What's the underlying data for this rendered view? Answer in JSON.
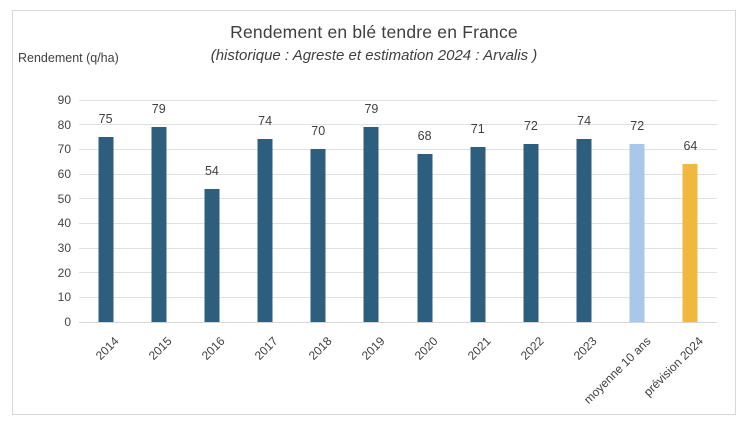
{
  "chart_data": {
    "type": "bar",
    "title": "Rendement en blé tendre en France",
    "subtitle": "(historique : Agreste et estimation 2024 : Arvalis )",
    "ylabel": "Rendement (q/ha)",
    "xlabel": "",
    "categories": [
      "2014",
      "2015",
      "2016",
      "2017",
      "2018",
      "2019",
      "2020",
      "2021",
      "2022",
      "2023",
      "moyenne 10 ans",
      "prévision 2024"
    ],
    "values": [
      75,
      79,
      54,
      74,
      70,
      79,
      68,
      71,
      72,
      74,
      72,
      64
    ],
    "ylim": [
      0,
      90
    ],
    "ytick_step": 10,
    "yticks": [
      0,
      10,
      20,
      30,
      40,
      50,
      60,
      70,
      80,
      90
    ],
    "grid": true,
    "legend": "none",
    "data_labels": true,
    "colors": {
      "historical": "#2e5e7d",
      "average": "#a9c8e9",
      "forecast": "#f1b83f"
    },
    "bar_color_keys": [
      "historical",
      "historical",
      "historical",
      "historical",
      "historical",
      "historical",
      "historical",
      "historical",
      "historical",
      "historical",
      "average",
      "forecast"
    ],
    "grid_color": "#e1e1e1",
    "axis_line_color": "#d6d6d6",
    "text_color": "#404040",
    "frame_border_color": "#d8d8d8"
  }
}
